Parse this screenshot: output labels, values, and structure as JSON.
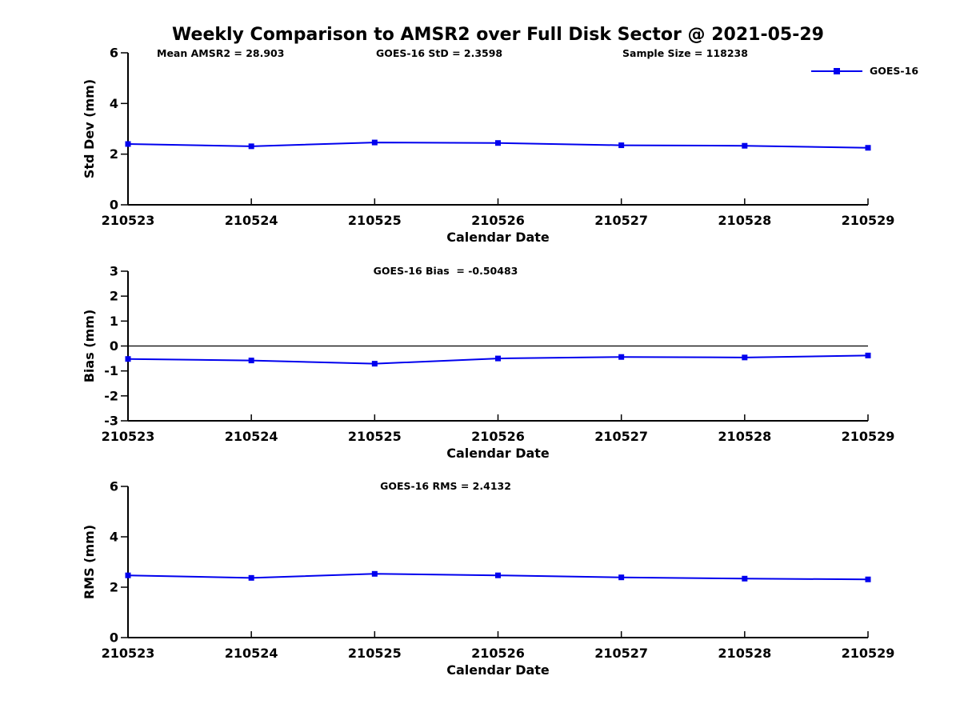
{
  "title": "Weekly Comparison to AMSR2 over Full Disk Sector @ 2021-05-29",
  "stats": {
    "mean_amsr2": "Mean AMSR2 = 28.903",
    "goes16_std": "GOES-16 StD = 2.3598",
    "sample_size": "Sample Size = 118238"
  },
  "legend": {
    "label": "GOES-16",
    "position": "top-right"
  },
  "colors": {
    "line": "#0000EE",
    "axis": "#000000",
    "text": "#000000",
    "background": "#FFFFFF"
  },
  "chart_data": [
    {
      "type": "line",
      "title": "",
      "xlabel": "Calendar Date",
      "ylabel": "Std Dev (mm)",
      "categories": [
        "210523",
        "210524",
        "210525",
        "210526",
        "210527",
        "210528",
        "210529"
      ],
      "series": [
        {
          "name": "GOES-16",
          "values": [
            2.4,
            2.31,
            2.46,
            2.44,
            2.35,
            2.33,
            2.25
          ]
        }
      ],
      "ylim": [
        0,
        6
      ],
      "yticks": [
        0,
        2,
        4,
        6
      ],
      "zero_line": false,
      "grid": false,
      "legend_entry": "GOES-16"
    },
    {
      "type": "line",
      "title": "GOES-16 Bias  = -0.50483",
      "xlabel": "Calendar Date",
      "ylabel": "Bias (mm)",
      "categories": [
        "210523",
        "210524",
        "210525",
        "210526",
        "210527",
        "210528",
        "210529"
      ],
      "series": [
        {
          "name": "GOES-16",
          "values": [
            -0.52,
            -0.58,
            -0.71,
            -0.5,
            -0.44,
            -0.46,
            -0.38
          ]
        }
      ],
      "ylim": [
        -3,
        3
      ],
      "yticks": [
        -3,
        -2,
        -1,
        0,
        1,
        2,
        3
      ],
      "zero_line": true,
      "grid": false,
      "legend_entry": "GOES-16"
    },
    {
      "type": "line",
      "title": "GOES-16 RMS = 2.4132",
      "xlabel": "Calendar Date",
      "ylabel": "RMS (mm)",
      "categories": [
        "210523",
        "210524",
        "210525",
        "210526",
        "210527",
        "210528",
        "210529"
      ],
      "series": [
        {
          "name": "GOES-16",
          "values": [
            2.47,
            2.37,
            2.53,
            2.47,
            2.39,
            2.34,
            2.31
          ]
        }
      ],
      "ylim": [
        0,
        6
      ],
      "yticks": [
        0,
        2,
        4,
        6
      ],
      "zero_line": false,
      "grid": false,
      "legend_entry": "GOES-16"
    }
  ]
}
